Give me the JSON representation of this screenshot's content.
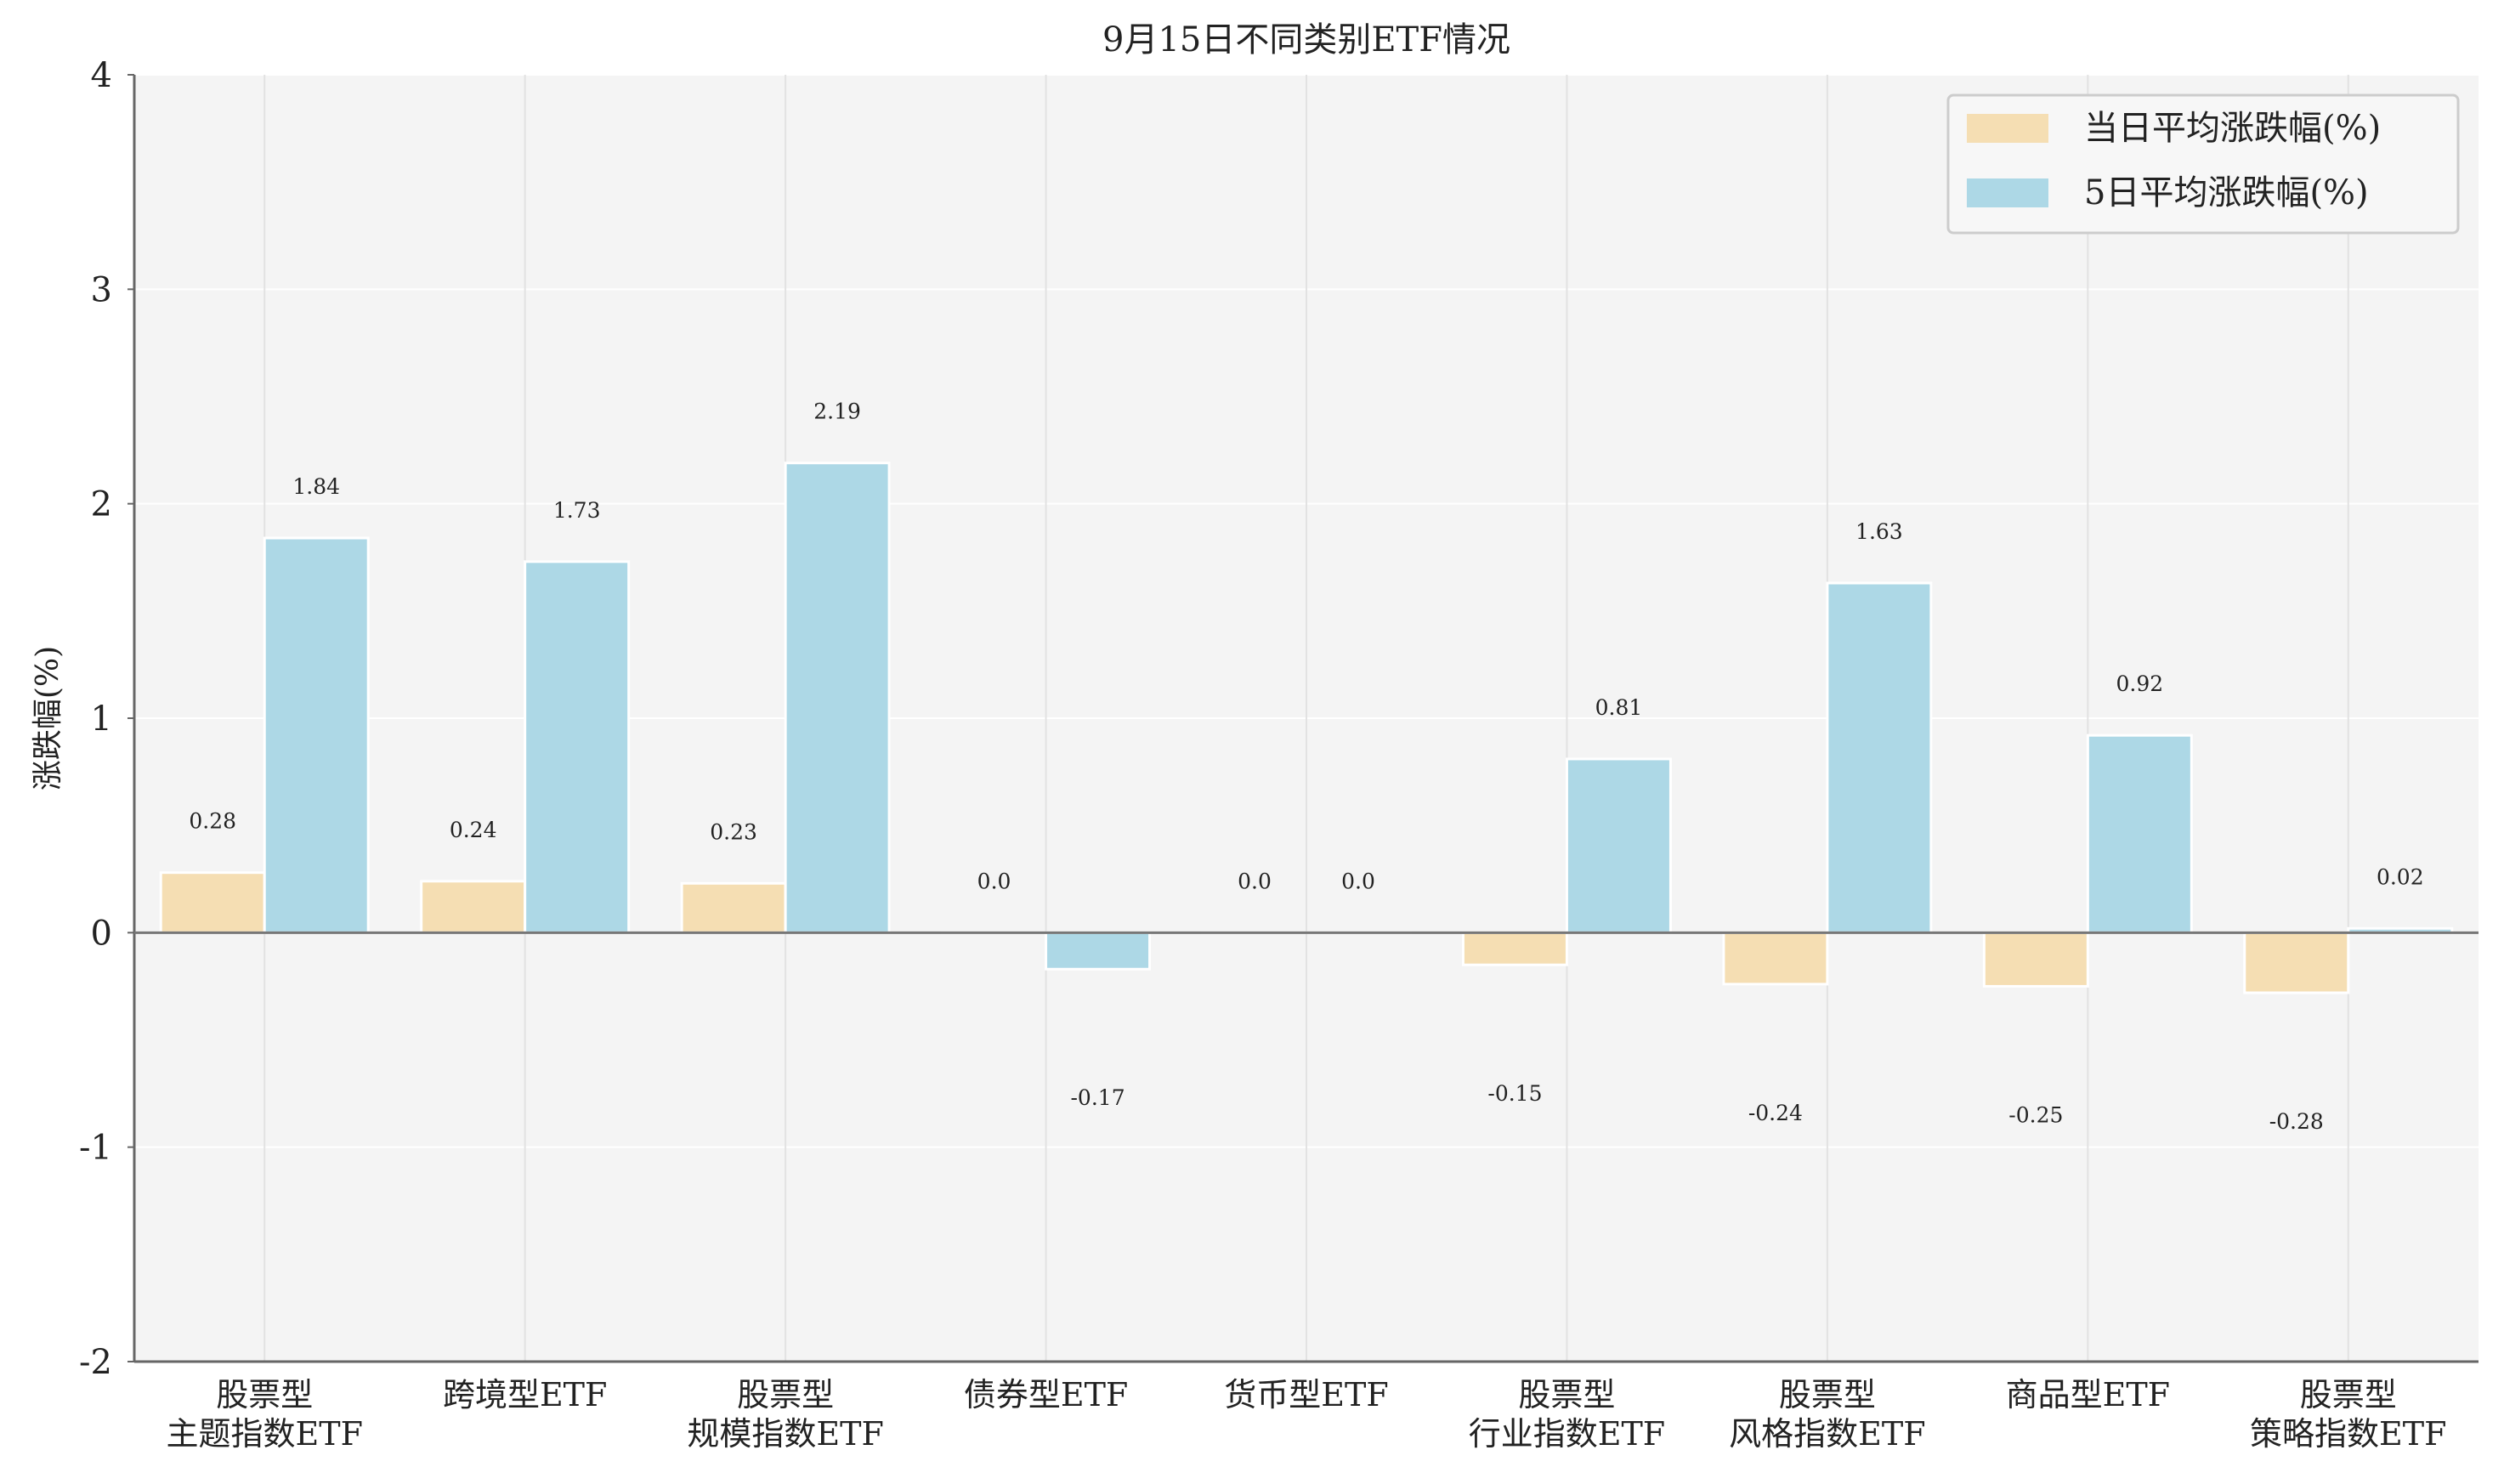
{
  "chart_data": {
    "type": "bar",
    "title": "9月15日不同类别ETF情况",
    "xlabel": "",
    "ylabel": "涨跌幅(%)",
    "ylim": [
      -2,
      4
    ],
    "yticks": [
      -2,
      -1,
      0,
      1,
      2,
      3,
      4
    ],
    "grid": true,
    "legend_position": "top-right",
    "categories": [
      "股票型\n主题指数ETF",
      "跨境型ETF",
      "股票型\n规模指数ETF",
      "债券型ETF",
      "货币型ETF",
      "股票型\n行业指数ETF",
      "股票型\n风格指数ETF",
      "商品型ETF",
      "股票型\n策略指数ETF"
    ],
    "series": [
      {
        "name": "当日平均涨跌幅(%)",
        "color": "#F5DEB3",
        "values": [
          0.28,
          0.24,
          0.23,
          0.0,
          0.0,
          -0.15,
          -0.24,
          -0.25,
          -0.28
        ],
        "labels": [
          "0.28",
          "0.24",
          "0.23",
          "0.0",
          "0.0",
          "-0.15",
          "-0.24",
          "-0.25",
          "-0.28"
        ]
      },
      {
        "name": "5日平均涨跌幅(%)",
        "color": "#ADD8E6",
        "values": [
          1.84,
          1.73,
          2.19,
          -0.17,
          0.0,
          0.81,
          1.63,
          0.92,
          0.02
        ],
        "labels": [
          "1.84",
          "1.73",
          "2.19",
          "-0.17",
          "0.0",
          "0.81",
          "1.63",
          "0.92",
          "0.02"
        ]
      }
    ]
  }
}
